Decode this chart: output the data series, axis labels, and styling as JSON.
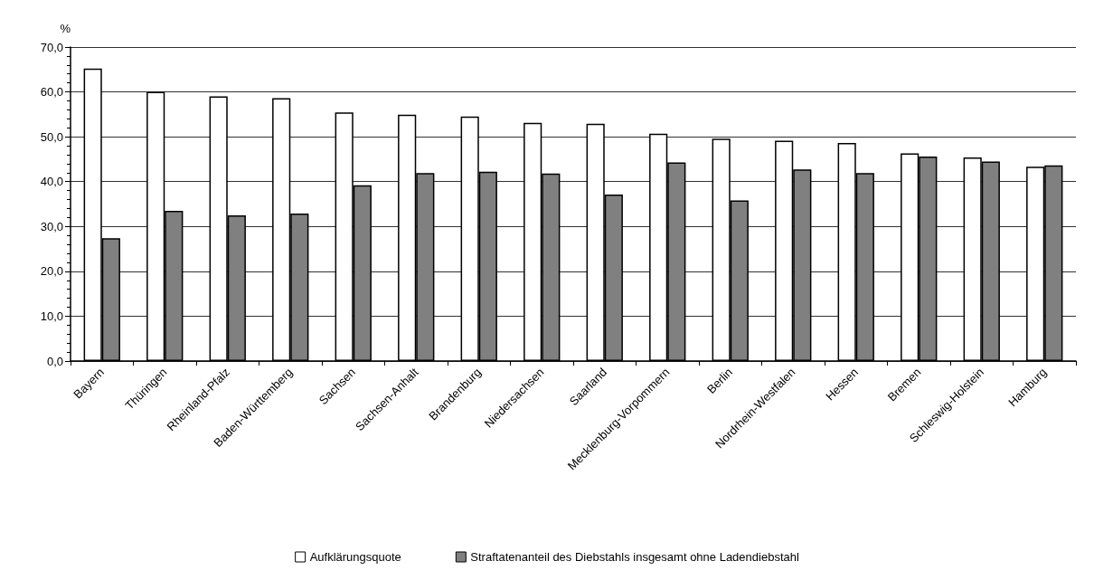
{
  "chart_data": {
    "type": "bar",
    "ylabel": "%",
    "categories": [
      "Bayern",
      "Thüringen",
      "Rheinland-Pfalz",
      "Baden-Württemberg",
      "Sachsen",
      "Sachsen-Anhalt",
      "Brandenburg",
      "Niedersachsen",
      "Saarland",
      "Mecklenburg-Vorpommern",
      "Berlin",
      "Nordrhein-Westfalen",
      "Hessen",
      "Bremen",
      "Schleswig-Holstein",
      "Hamburg"
    ],
    "series": [
      {
        "name": "Aufklärungsquote",
        "color": "#ffffff",
        "values": [
          65.2,
          60.0,
          59.0,
          58.6,
          55.4,
          54.9,
          54.5,
          53.1,
          52.9,
          50.7,
          49.6,
          49.1,
          48.6,
          46.3,
          45.4,
          43.3
        ]
      },
      {
        "name": "Straftatenanteil des Diebstahls insgesamt ohne Ladendiebstahl",
        "color": "#808080",
        "values": [
          27.4,
          33.5,
          32.5,
          32.9,
          39.2,
          41.9,
          42.2,
          41.8,
          37.1,
          44.3,
          35.8,
          42.7,
          41.9,
          45.6,
          44.5,
          43.6
        ]
      }
    ],
    "ylim": [
      0,
      70
    ],
    "yticks": [
      {
        "value": 0,
        "label": "0,0"
      },
      {
        "value": 10,
        "label": "10,0"
      },
      {
        "value": 20,
        "label": "20,0"
      },
      {
        "value": 30,
        "label": "30,0"
      },
      {
        "value": 40,
        "label": "40,0"
      },
      {
        "value": 50,
        "label": "50,0"
      },
      {
        "value": 60,
        "label": "60,0"
      },
      {
        "value": 70,
        "label": "70,0"
      }
    ],
    "grid": "y",
    "legend": "bottom"
  }
}
